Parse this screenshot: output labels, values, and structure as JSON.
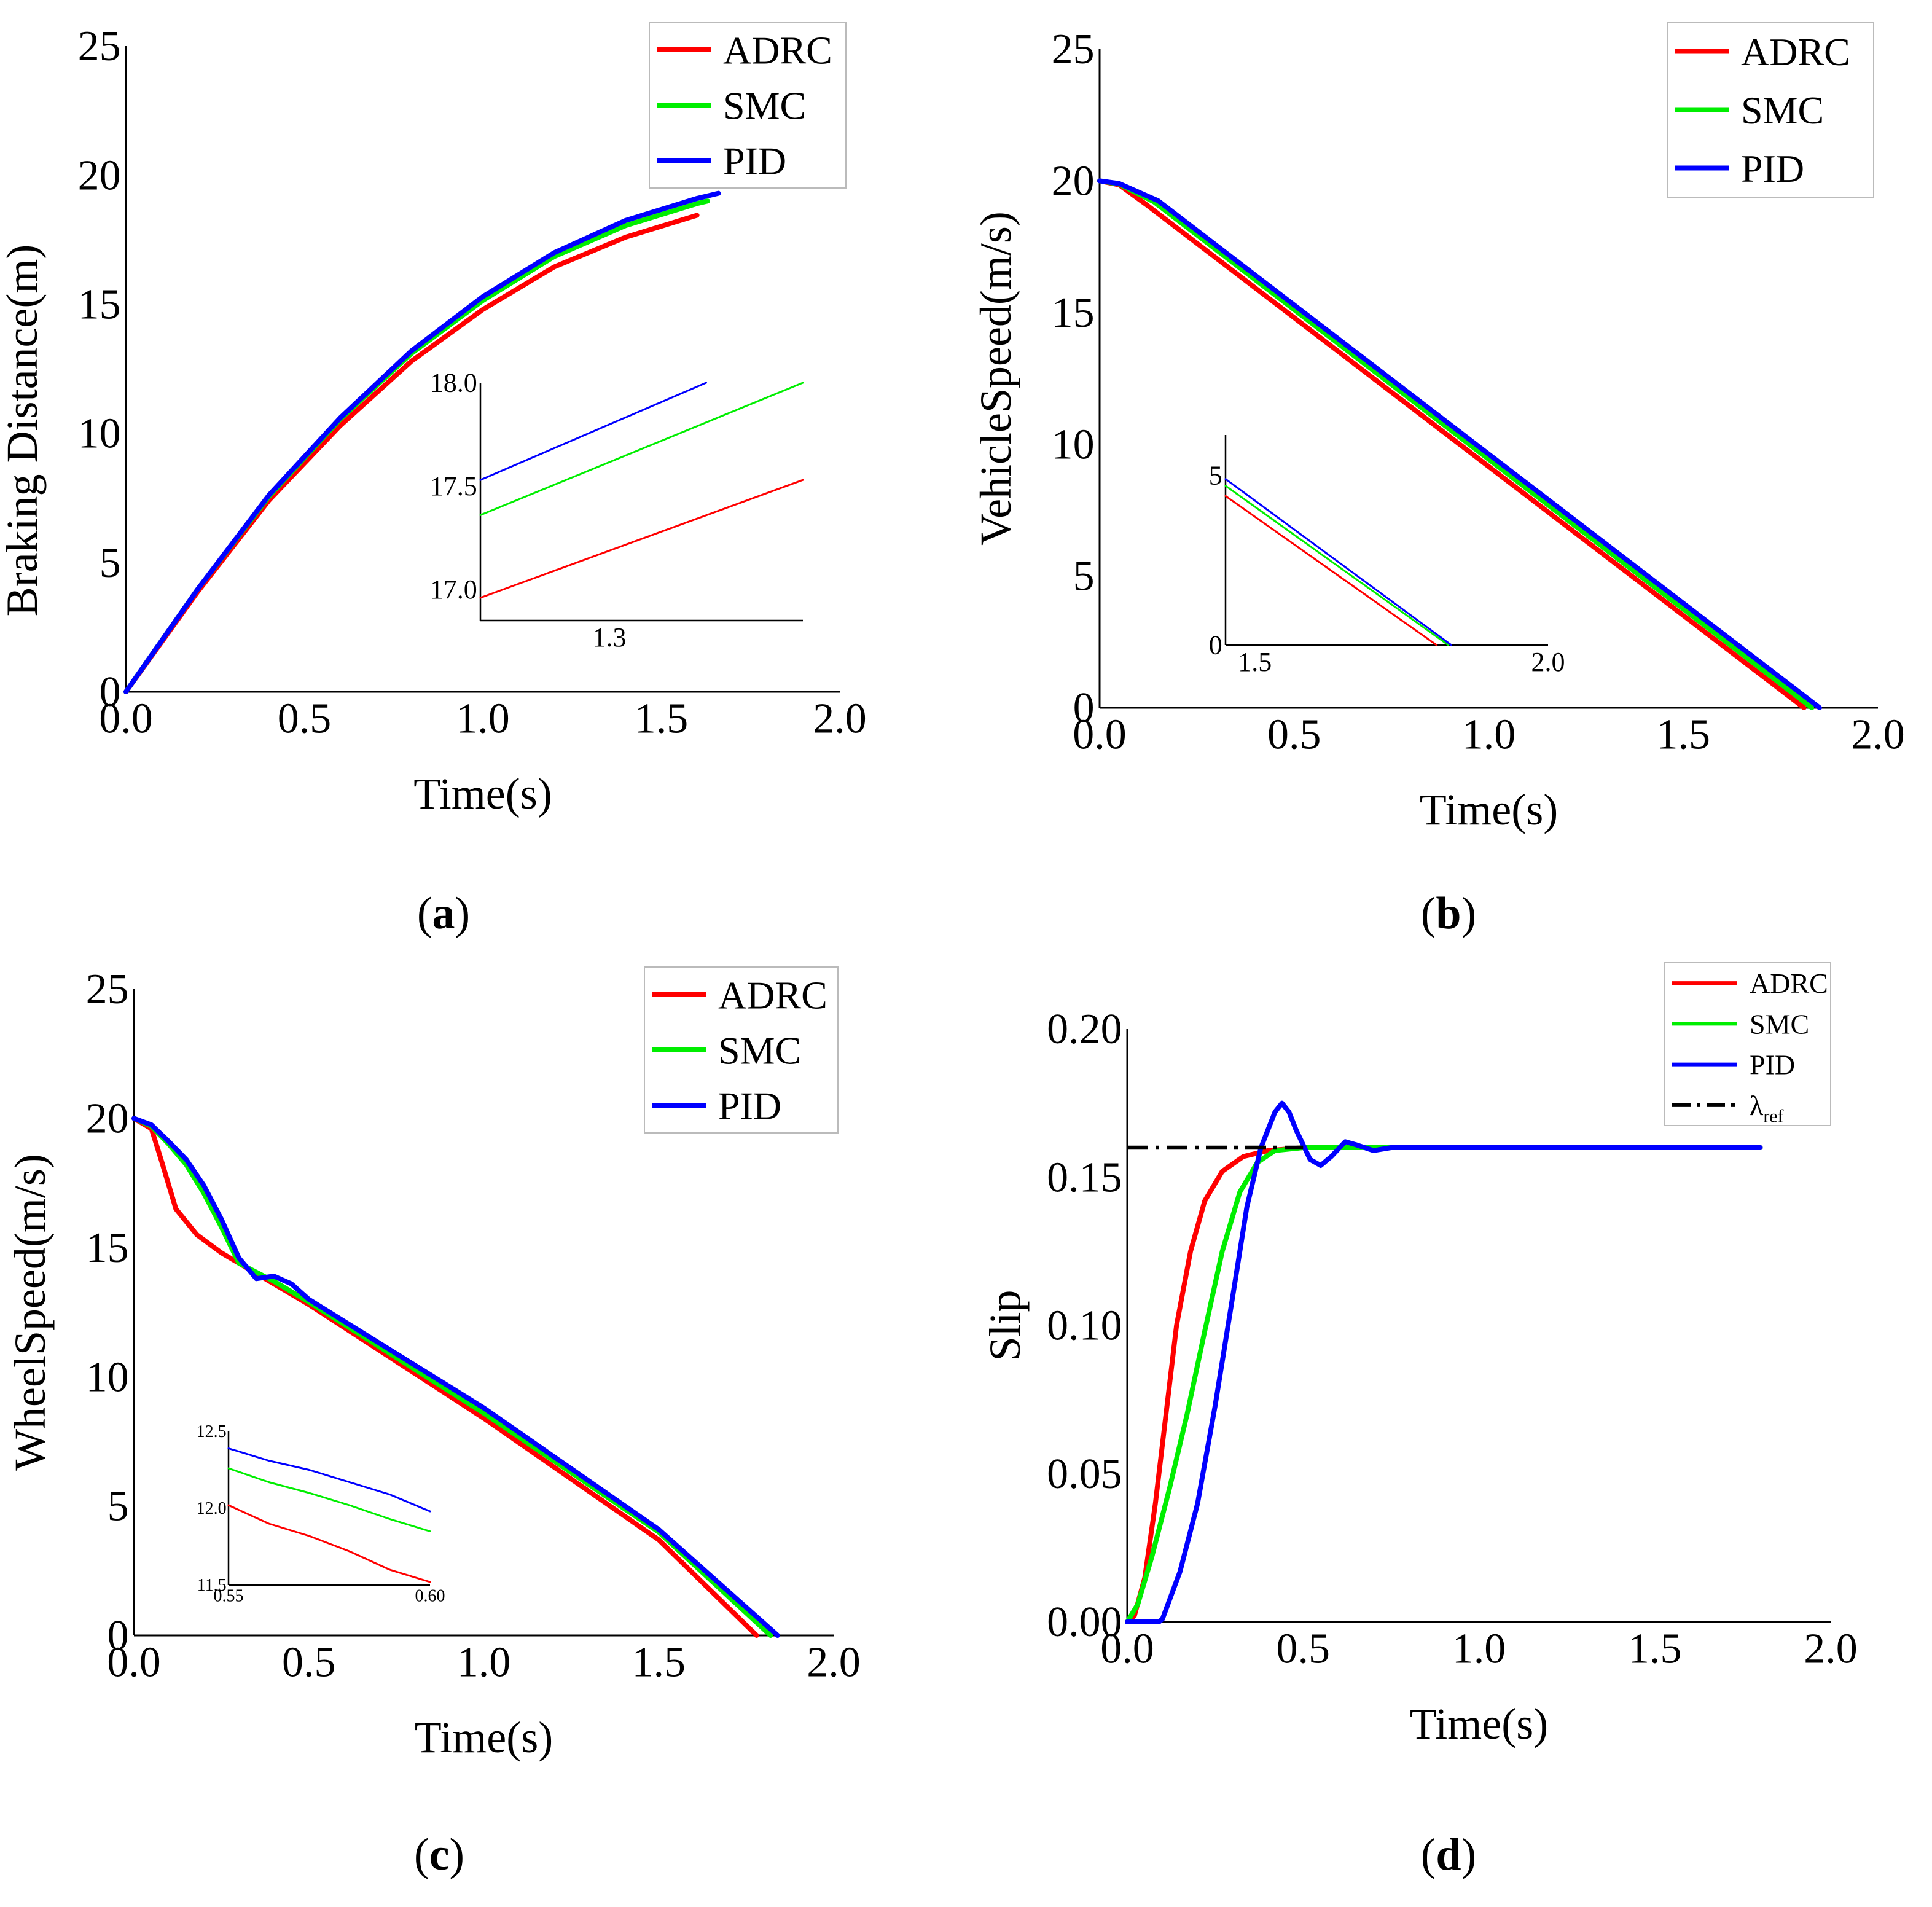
{
  "colors": {
    "ADRC": "#ff0000",
    "SMC": "#00ee00",
    "PID": "#0000ff",
    "ref": "#000000"
  },
  "captions": {
    "a": "a",
    "b": "b",
    "c": "c",
    "d": "d"
  },
  "chart_data": [
    {
      "id": "a",
      "type": "line",
      "xlabel": "Time(s)",
      "ylabel": "Braking Distance(m)",
      "xlim": [
        0,
        2.0
      ],
      "ylim": [
        0,
        25
      ],
      "xticks": [
        "0.0",
        "0.5",
        "1.0",
        "1.5",
        "2.0"
      ],
      "yticks": [
        "0",
        "5",
        "10",
        "15",
        "20",
        "25"
      ],
      "legend": [
        "ADRC",
        "SMC",
        "PID"
      ],
      "legend_position": "top-right",
      "series": [
        {
          "name": "ADRC",
          "x": [
            0,
            0.2,
            0.4,
            0.6,
            0.8,
            1.0,
            1.2,
            1.4,
            1.6
          ],
          "y": [
            0,
            3.85,
            7.4,
            10.3,
            12.8,
            14.8,
            16.45,
            17.6,
            18.45
          ]
        },
        {
          "name": "SMC",
          "x": [
            0,
            0.2,
            0.4,
            0.6,
            0.8,
            1.0,
            1.2,
            1.4,
            1.6,
            1.63
          ],
          "y": [
            0,
            3.95,
            7.55,
            10.55,
            13.1,
            15.15,
            16.85,
            18.05,
            18.9,
            19.0
          ]
        },
        {
          "name": "PID",
          "x": [
            0,
            0.2,
            0.4,
            0.6,
            0.8,
            1.0,
            1.2,
            1.4,
            1.6,
            1.66
          ],
          "y": [
            0,
            3.95,
            7.6,
            10.6,
            13.2,
            15.3,
            17.0,
            18.25,
            19.1,
            19.3
          ]
        }
      ],
      "inset": {
        "xlim": [
          1.22,
          1.42
        ],
        "ylim": [
          16.85,
          18.0
        ],
        "xticks": [
          "1.3"
        ],
        "yticks": [
          "17.0",
          "17.5",
          "18.0"
        ],
        "series": [
          {
            "name": "ADRC",
            "x": [
              1.22,
              1.42
            ],
            "y": [
              16.96,
              17.53
            ]
          },
          {
            "name": "SMC",
            "x": [
              1.22,
              1.42
            ],
            "y": [
              17.36,
              18.0
            ]
          },
          {
            "name": "PID",
            "x": [
              1.22,
              1.36
            ],
            "y": [
              17.53,
              18.0
            ]
          }
        ]
      }
    },
    {
      "id": "b",
      "type": "line",
      "xlabel": "Time(s)",
      "ylabel": "VehicleSpeed(m/s)",
      "xlim": [
        0,
        2.0
      ],
      "ylim": [
        0,
        25
      ],
      "xticks": [
        "0.0",
        "0.5",
        "1.0",
        "1.5",
        "2.0"
      ],
      "yticks": [
        "0",
        "5",
        "10",
        "15",
        "20",
        "25"
      ],
      "legend": [
        "ADRC",
        "SMC",
        "PID"
      ],
      "legend_position": "top-right",
      "series": [
        {
          "name": "ADRC",
          "x": [
            0,
            0.05,
            0.12,
            1.81
          ],
          "y": [
            20,
            19.85,
            19.1,
            0
          ]
        },
        {
          "name": "SMC",
          "x": [
            0,
            0.05,
            0.14,
            1.83
          ],
          "y": [
            20,
            19.88,
            19.2,
            0
          ]
        },
        {
          "name": "PID",
          "x": [
            0,
            0.05,
            0.15,
            1.85
          ],
          "y": [
            20,
            19.9,
            19.25,
            0
          ]
        }
      ],
      "inset": {
        "xlim": [
          1.45,
          2.0
        ],
        "ylim": [
          0,
          6.2
        ],
        "xticks": [
          "1.5",
          "2.0"
        ],
        "yticks": [
          "0",
          "5"
        ],
        "series": [
          {
            "name": "ADRC",
            "x": [
              1.45,
              1.81
            ],
            "y": [
              4.4,
              0
            ]
          },
          {
            "name": "SMC",
            "x": [
              1.45,
              1.83
            ],
            "y": [
              4.7,
              0
            ]
          },
          {
            "name": "PID",
            "x": [
              1.45,
              1.835
            ],
            "y": [
              4.9,
              0
            ]
          }
        ]
      }
    },
    {
      "id": "c",
      "type": "line",
      "xlabel": "Time(s)",
      "ylabel": "WheelSpeed(m/s)",
      "xlim": [
        0,
        2.0
      ],
      "ylim": [
        0,
        25
      ],
      "xticks": [
        "0.0",
        "0.5",
        "1.0",
        "1.5",
        "2.0"
      ],
      "yticks": [
        "0",
        "5",
        "10",
        "15",
        "20",
        "25"
      ],
      "legend": [
        "ADRC",
        "SMC",
        "PID"
      ],
      "legend_position": "top-right",
      "series": [
        {
          "name": "ADRC",
          "x": [
            0,
            0.05,
            0.08,
            0.12,
            0.18,
            0.25,
            0.35,
            0.5,
            1.0,
            1.5,
            1.78
          ],
          "y": [
            20,
            19.6,
            18.3,
            16.5,
            15.5,
            14.8,
            14.0,
            12.8,
            8.4,
            3.7,
            0
          ]
        },
        {
          "name": "SMC",
          "x": [
            0,
            0.05,
            0.1,
            0.15,
            0.2,
            0.25,
            0.3,
            0.4,
            0.5,
            1.0,
            1.5,
            1.82
          ],
          "y": [
            20,
            19.7,
            19.0,
            18.2,
            17.1,
            15.8,
            14.4,
            13.7,
            12.9,
            8.6,
            4.0,
            0
          ]
        },
        {
          "name": "PID",
          "x": [
            0,
            0.05,
            0.1,
            0.15,
            0.2,
            0.25,
            0.3,
            0.35,
            0.4,
            0.45,
            0.5,
            1.0,
            1.5,
            1.84
          ],
          "y": [
            20,
            19.75,
            19.1,
            18.4,
            17.4,
            16.1,
            14.6,
            13.8,
            13.9,
            13.6,
            13.0,
            8.8,
            4.1,
            0
          ]
        }
      ],
      "inset": {
        "xlim": [
          0.55,
          0.6
        ],
        "ylim": [
          11.5,
          12.5
        ],
        "xticks": [
          "0.55",
          "0.60"
        ],
        "yticks": [
          "11.5",
          "12.0",
          "12.5"
        ],
        "series": [
          {
            "name": "ADRC",
            "x": [
              0.55,
              0.56,
              0.57,
              0.58,
              0.59,
              0.6
            ],
            "y": [
              12.02,
              11.9,
              11.82,
              11.72,
              11.6,
              11.52
            ]
          },
          {
            "name": "SMC",
            "x": [
              0.55,
              0.56,
              0.57,
              0.58,
              0.59,
              0.6
            ],
            "y": [
              12.26,
              12.17,
              12.1,
              12.02,
              11.93,
              11.85
            ]
          },
          {
            "name": "PID",
            "x": [
              0.55,
              0.56,
              0.57,
              0.58,
              0.59,
              0.6
            ],
            "y": [
              12.39,
              12.31,
              12.25,
              12.17,
              12.09,
              11.98
            ]
          }
        ]
      }
    },
    {
      "id": "d",
      "type": "line",
      "xlabel": "Time(s)",
      "ylabel": "Slip",
      "xlim": [
        0,
        2.0
      ],
      "ylim": [
        0,
        0.2
      ],
      "xticks": [
        "0.0",
        "0.5",
        "1.0",
        "1.5",
        "2.0"
      ],
      "yticks": [
        "0.00",
        "0.05",
        "0.10",
        "0.15",
        "0.20"
      ],
      "legend": [
        "ADRC",
        "SMC",
        "PID",
        "λref"
      ],
      "legend_position": "top-right",
      "series": [
        {
          "name": "ADRC",
          "x": [
            0,
            0.02,
            0.05,
            0.08,
            0.11,
            0.14,
            0.18,
            0.22,
            0.27,
            0.33,
            0.4,
            0.5,
            1.8
          ],
          "y": [
            0,
            0.002,
            0.015,
            0.04,
            0.07,
            0.1,
            0.125,
            0.142,
            0.152,
            0.157,
            0.159,
            0.16,
            0.16
          ]
        },
        {
          "name": "SMC",
          "x": [
            0,
            0.03,
            0.07,
            0.12,
            0.17,
            0.22,
            0.27,
            0.32,
            0.37,
            0.42,
            0.5,
            0.6,
            1.8
          ],
          "y": [
            0,
            0.006,
            0.022,
            0.045,
            0.07,
            0.098,
            0.125,
            0.145,
            0.155,
            0.159,
            0.16,
            0.16,
            0.16
          ]
        },
        {
          "name": "PID",
          "x": [
            0,
            0.09,
            0.1,
            0.15,
            0.2,
            0.25,
            0.3,
            0.34,
            0.38,
            0.42,
            0.44,
            0.46,
            0.48,
            0.52,
            0.55,
            0.58,
            0.62,
            0.65,
            0.7,
            0.75,
            0.9,
            1.8
          ],
          "y": [
            0,
            0,
            0.001,
            0.017,
            0.04,
            0.073,
            0.11,
            0.14,
            0.16,
            0.172,
            0.175,
            0.172,
            0.166,
            0.156,
            0.154,
            0.157,
            0.162,
            0.161,
            0.159,
            0.16,
            0.16,
            0.16
          ]
        },
        {
          "name": "λref",
          "x": [
            0,
            0.5
          ],
          "y": [
            0.16,
            0.16
          ],
          "style": "dashdot"
        }
      ]
    }
  ]
}
